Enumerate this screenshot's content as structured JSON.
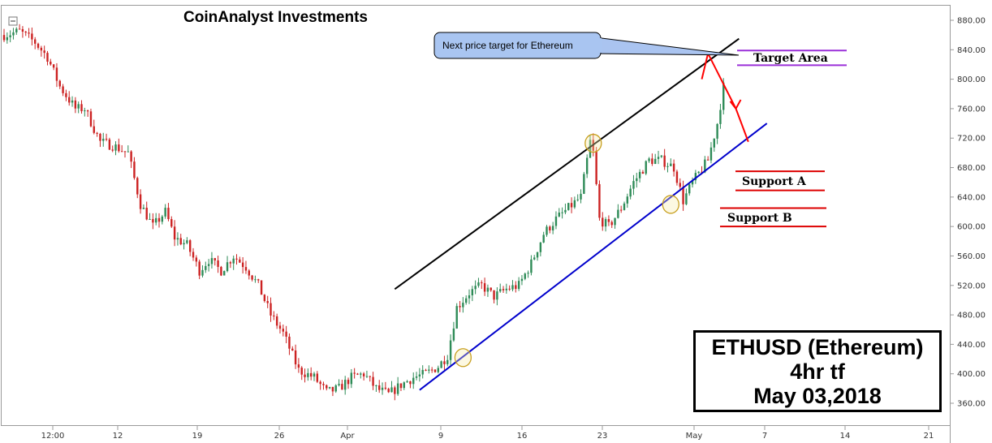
{
  "chart_data": {
    "type": "candlestick",
    "title": "CoinAnalyst Investments",
    "y_axis": {
      "position": "right",
      "range": [
        330,
        880
      ],
      "ticks": [
        360,
        400,
        440,
        480,
        520,
        560,
        600,
        640,
        680,
        720,
        760,
        800,
        840,
        880
      ],
      "tick_labels": [
        "360.00",
        "400.00",
        "440.00",
        "480.00",
        "520.00",
        "560.00",
        "600.00",
        "640.00",
        "680.00",
        "720.00",
        "760.00",
        "800.00",
        "840.00",
        "880.00"
      ]
    },
    "x_axis": {
      "tick_labels": [
        "12:00",
        "12",
        "19",
        "26",
        "Apr",
        "9",
        "16",
        "23",
        "May",
        "7",
        "14",
        "21"
      ]
    },
    "candle_colors": {
      "up": "#2e8b57",
      "down": "#cc2222"
    },
    "price_path": [
      [
        0,
        860
      ],
      [
        5,
        865
      ],
      [
        10,
        850
      ],
      [
        14,
        830
      ],
      [
        18,
        790
      ],
      [
        23,
        760
      ],
      [
        26,
        760
      ],
      [
        31,
        715
      ],
      [
        35,
        710
      ],
      [
        40,
        700
      ],
      [
        44,
        630
      ],
      [
        48,
        600
      ],
      [
        52,
        620
      ],
      [
        55,
        585
      ],
      [
        59,
        575
      ],
      [
        63,
        540
      ],
      [
        66,
        555
      ],
      [
        70,
        540
      ],
      [
        74,
        560
      ],
      [
        78,
        545
      ],
      [
        82,
        520
      ],
      [
        86,
        480
      ],
      [
        90,
        455
      ],
      [
        95,
        405
      ],
      [
        100,
        395
      ],
      [
        104,
        375
      ],
      [
        108,
        380
      ],
      [
        112,
        395
      ],
      [
        116,
        400
      ],
      [
        120,
        380
      ],
      [
        124,
        372
      ],
      [
        128,
        385
      ],
      [
        132,
        395
      ],
      [
        136,
        400
      ],
      [
        140,
        410
      ],
      [
        143,
        425
      ],
      [
        146,
        490
      ],
      [
        150,
        510
      ],
      [
        154,
        520
      ],
      [
        158,
        505
      ],
      [
        162,
        515
      ],
      [
        166,
        520
      ],
      [
        170,
        550
      ],
      [
        174,
        590
      ],
      [
        178,
        610
      ],
      [
        182,
        625
      ],
      [
        186,
        640
      ],
      [
        189,
        715
      ],
      [
        190,
        700
      ],
      [
        192,
        610
      ],
      [
        195,
        600
      ],
      [
        199,
        625
      ],
      [
        203,
        660
      ],
      [
        208,
        690
      ],
      [
        212,
        690
      ],
      [
        216,
        680
      ],
      [
        219,
        635
      ],
      [
        222,
        660
      ],
      [
        227,
        690
      ],
      [
        230,
        740
      ],
      [
        232,
        790
      ]
    ],
    "trend_lines": [
      {
        "name": "upper-resistance",
        "color": "#000000",
        "points": [
          [
            126,
            515
          ],
          [
            237,
            855
          ]
        ]
      },
      {
        "name": "lower-support",
        "color": "#0000cc",
        "points": [
          [
            134,
            378
          ],
          [
            246,
            740
          ]
        ]
      }
    ],
    "levels": [
      {
        "label": "Target Area",
        "color": "#9b30d9",
        "values": [
          839,
          819
        ]
      },
      {
        "label": "Support A",
        "color": "#dd0000",
        "values": [
          675,
          649
        ]
      },
      {
        "label": "Support B",
        "color": "#dd0000",
        "values": [
          625,
          600
        ]
      }
    ],
    "touch_points": [
      [
        148,
        422
      ],
      [
        190,
        713
      ],
      [
        215,
        630
      ]
    ],
    "projection": {
      "color": "#ff0000",
      "points": [
        [
          225,
          800
        ],
        [
          227,
          835
        ],
        [
          236,
          760
        ],
        [
          240,
          715
        ]
      ]
    },
    "callout": "Next price target for Ethereum",
    "info_box": [
      "ETHUSD (Ethereum)",
      "4hr tf",
      "May 03,2018"
    ]
  }
}
